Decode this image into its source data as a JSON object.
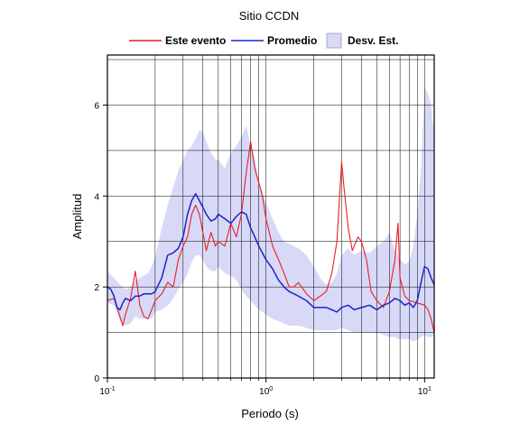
{
  "chart_data": {
    "type": "line",
    "title": "Sitio CCDN",
    "xlabel": "Periodo (s)",
    "ylabel": "Amplitud",
    "xscale": "log",
    "xlim": [
      0.1,
      11.5
    ],
    "ylim": [
      0,
      7.1
    ],
    "x_ticks": [
      {
        "value": 0.1,
        "base": "10",
        "exp": "-1"
      },
      {
        "value": 1,
        "base": "10",
        "exp": "0"
      },
      {
        "value": 10,
        "base": "10",
        "exp": "1"
      }
    ],
    "y_ticks": [
      0,
      2,
      4,
      6
    ],
    "grid": true,
    "legend_position": "top-center",
    "legend": [
      {
        "label": "Este evento",
        "kind": "line",
        "color": "#ee1c25"
      },
      {
        "label": "Promedio",
        "kind": "line",
        "color": "#1f23c8"
      },
      {
        "label": "Desv. Est.",
        "kind": "band",
        "color": "#d7d9f7"
      }
    ],
    "colors": {
      "event": "#ee1c25",
      "mean": "#1f23c8",
      "band": "#d7d9f7"
    },
    "series": [
      {
        "name": "Este evento",
        "color": "#ee1c25",
        "x": [
          0.1,
          0.11,
          0.12,
          0.125,
          0.13,
          0.14,
          0.15,
          0.16,
          0.17,
          0.18,
          0.19,
          0.2,
          0.22,
          0.24,
          0.26,
          0.28,
          0.3,
          0.32,
          0.34,
          0.36,
          0.38,
          0.4,
          0.42,
          0.45,
          0.48,
          0.5,
          0.55,
          0.6,
          0.65,
          0.7,
          0.75,
          0.8,
          0.85,
          0.9,
          0.95,
          1.0,
          1.1,
          1.2,
          1.3,
          1.4,
          1.5,
          1.6,
          1.8,
          2.0,
          2.2,
          2.4,
          2.6,
          2.8,
          3.0,
          3.1,
          3.3,
          3.5,
          3.8,
          4.0,
          4.3,
          4.6,
          5.0,
          5.5,
          6.0,
          6.5,
          6.8,
          7.0,
          7.5,
          8.0,
          9.0,
          10.0,
          10.5,
          11.0,
          11.5
        ],
        "y": [
          1.7,
          1.75,
          1.35,
          1.15,
          1.4,
          1.75,
          2.35,
          1.6,
          1.35,
          1.3,
          1.5,
          1.7,
          1.85,
          2.1,
          2.0,
          2.6,
          2.9,
          3.1,
          3.6,
          3.8,
          3.6,
          3.2,
          2.8,
          3.2,
          2.9,
          3.0,
          2.9,
          3.4,
          3.1,
          3.6,
          4.5,
          5.2,
          4.6,
          4.3,
          4.0,
          3.5,
          2.9,
          2.6,
          2.3,
          2.0,
          2.0,
          2.1,
          1.85,
          1.7,
          1.8,
          1.9,
          2.3,
          3.0,
          4.75,
          4.2,
          3.3,
          2.8,
          3.1,
          3.0,
          2.6,
          1.9,
          1.7,
          1.55,
          1.9,
          2.6,
          3.4,
          2.2,
          1.8,
          1.7,
          1.65,
          1.6,
          1.5,
          1.3,
          1.0
        ]
      },
      {
        "name": "Promedio",
        "color": "#1f23c8",
        "x": [
          0.1,
          0.105,
          0.11,
          0.115,
          0.12,
          0.125,
          0.13,
          0.14,
          0.15,
          0.16,
          0.17,
          0.18,
          0.19,
          0.2,
          0.22,
          0.24,
          0.26,
          0.28,
          0.3,
          0.32,
          0.34,
          0.36,
          0.38,
          0.4,
          0.42,
          0.45,
          0.48,
          0.5,
          0.55,
          0.6,
          0.65,
          0.7,
          0.75,
          0.8,
          0.85,
          0.9,
          1.0,
          1.1,
          1.2,
          1.3,
          1.4,
          1.5,
          1.6,
          1.8,
          2.0,
          2.2,
          2.4,
          2.6,
          2.8,
          3.0,
          3.3,
          3.6,
          4.0,
          4.5,
          5.0,
          5.5,
          6.0,
          6.5,
          7.0,
          7.5,
          8.0,
          8.5,
          9.0,
          9.5,
          10.0,
          10.5,
          11.0,
          11.5
        ],
        "y": [
          2.0,
          1.95,
          1.8,
          1.55,
          1.5,
          1.65,
          1.75,
          1.7,
          1.8,
          1.8,
          1.85,
          1.85,
          1.85,
          1.9,
          2.2,
          2.7,
          2.75,
          2.85,
          3.1,
          3.6,
          3.9,
          4.05,
          3.9,
          3.75,
          3.6,
          3.45,
          3.5,
          3.6,
          3.5,
          3.4,
          3.55,
          3.65,
          3.6,
          3.3,
          3.1,
          2.9,
          2.6,
          2.4,
          2.15,
          2.0,
          1.9,
          1.85,
          1.8,
          1.7,
          1.55,
          1.55,
          1.55,
          1.5,
          1.45,
          1.55,
          1.6,
          1.5,
          1.55,
          1.6,
          1.5,
          1.6,
          1.65,
          1.75,
          1.7,
          1.6,
          1.65,
          1.55,
          1.7,
          2.1,
          2.45,
          2.4,
          2.2,
          2.05
        ]
      }
    ],
    "band": {
      "name": "Desv. Est.",
      "color": "#d7d9f7",
      "x": [
        0.1,
        0.11,
        0.12,
        0.13,
        0.14,
        0.15,
        0.16,
        0.17,
        0.18,
        0.19,
        0.2,
        0.22,
        0.24,
        0.26,
        0.28,
        0.3,
        0.32,
        0.34,
        0.36,
        0.38,
        0.4,
        0.42,
        0.45,
        0.48,
        0.5,
        0.55,
        0.6,
        0.65,
        0.7,
        0.75,
        0.8,
        0.85,
        0.9,
        1.0,
        1.1,
        1.2,
        1.3,
        1.4,
        1.5,
        1.6,
        1.8,
        2.0,
        2.2,
        2.4,
        2.6,
        2.8,
        3.0,
        3.3,
        3.6,
        4.0,
        4.5,
        5.0,
        5.5,
        6.0,
        6.5,
        7.0,
        7.5,
        8.0,
        8.5,
        9.0,
        9.5,
        10.0,
        10.5,
        11.0,
        11.5
      ],
      "upper": [
        2.35,
        2.2,
        2.05,
        1.95,
        2.0,
        2.15,
        2.2,
        2.25,
        2.3,
        2.45,
        2.65,
        3.3,
        3.8,
        4.2,
        4.55,
        4.8,
        5.0,
        5.1,
        5.25,
        5.45,
        5.4,
        5.2,
        4.95,
        4.8,
        4.8,
        4.6,
        4.95,
        5.1,
        5.3,
        5.55,
        5.1,
        4.85,
        4.3,
        3.85,
        3.5,
        3.2,
        3.0,
        2.95,
        2.9,
        2.85,
        2.7,
        2.45,
        2.2,
        2.05,
        2.1,
        2.3,
        2.7,
        2.85,
        2.7,
        2.8,
        2.75,
        2.9,
        3.0,
        3.2,
        2.8,
        2.6,
        2.5,
        2.55,
        2.9,
        3.6,
        4.6,
        6.4,
        6.25,
        6.0,
        5.3
      ],
      "lower": [
        1.65,
        1.6,
        1.25,
        1.15,
        1.2,
        1.35,
        1.3,
        1.3,
        1.3,
        1.3,
        1.45,
        1.5,
        1.6,
        1.75,
        1.95,
        2.1,
        2.3,
        2.55,
        2.7,
        2.7,
        2.6,
        2.45,
        2.35,
        2.35,
        2.45,
        2.3,
        2.25,
        2.15,
        1.95,
        1.8,
        1.7,
        1.6,
        1.5,
        1.4,
        1.3,
        1.25,
        1.2,
        1.15,
        1.15,
        1.15,
        1.1,
        1.05,
        1.05,
        1.05,
        1.05,
        1.05,
        1.1,
        1.05,
        1.0,
        1.0,
        1.0,
        1.0,
        0.95,
        0.9,
        0.9,
        0.85,
        0.85,
        0.85,
        0.8,
        0.85,
        0.9,
        0.95,
        0.9,
        0.9,
        0.95
      ]
    }
  }
}
